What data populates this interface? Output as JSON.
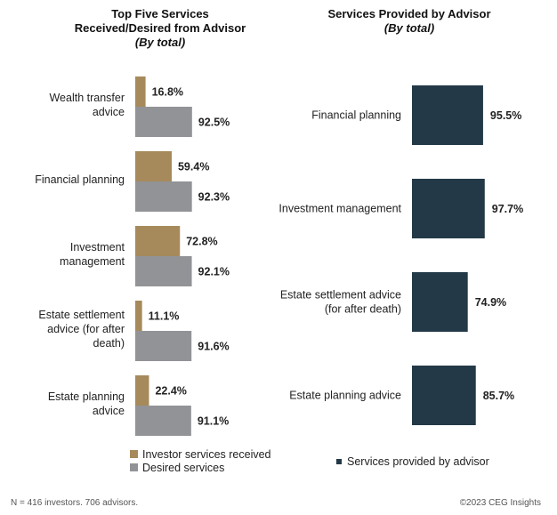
{
  "colors": {
    "received": "#A68A5B",
    "desired": "#929397",
    "provided": "#233947"
  },
  "chart_data": [
    {
      "type": "bar",
      "title": "Top Five Services Received/Desired from Advisor",
      "title_lines": [
        "Top Five Services",
        "Received/Desired from Advisor"
      ],
      "subtitle": "(By total)",
      "orientation": "horizontal",
      "categories": [
        [
          "Wealth transfer",
          "advice"
        ],
        [
          "Financial planning"
        ],
        [
          "Investment",
          "management"
        ],
        [
          "Estate settlement",
          "advice (for after",
          "death)"
        ],
        [
          "Estate planning",
          "advice"
        ]
      ],
      "series": [
        {
          "name": "Investor services received",
          "values": [
            16.8,
            59.4,
            72.8,
            11.1,
            22.4
          ],
          "labels": [
            "16.8%",
            "59.4%",
            "72.8%",
            "11.1%",
            "22.4%"
          ]
        },
        {
          "name": "Desired services",
          "values": [
            92.5,
            92.3,
            92.1,
            91.6,
            91.1
          ],
          "labels": [
            "92.5%",
            "92.3%",
            "92.1%",
            "91.6%",
            "91.1%"
          ]
        }
      ],
      "xlim": [
        0,
        100
      ],
      "grid": false,
      "legend_position": "bottom-left"
    },
    {
      "type": "bar",
      "title": "Services Provided by Advisor",
      "subtitle": "(By total)",
      "orientation": "horizontal",
      "categories": [
        [
          "Financial planning"
        ],
        [
          "Investment management"
        ],
        [
          "Estate settlement advice",
          "(for after death)"
        ],
        [
          "Estate planning advice"
        ]
      ],
      "series": [
        {
          "name": "Services provided by advisor",
          "values": [
            95.5,
            97.7,
            74.9,
            85.7
          ],
          "labels": [
            "95.5%",
            "97.7%",
            "74.9%",
            "85.7%"
          ]
        }
      ],
      "xlim": [
        0,
        100
      ],
      "grid": false,
      "legend_position": "bottom"
    }
  ],
  "footer": {
    "note": "N = 416 investors. 706 advisors.",
    "copyright": "©2023 CEG Insights"
  }
}
